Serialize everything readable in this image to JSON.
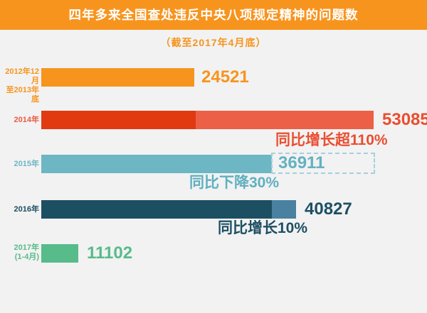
{
  "header": {
    "title": "四年多来全国查处违反中央八项规定精神的问题数",
    "bg_color": "#f7941e",
    "text_color": "#ffffff"
  },
  "subtitle": {
    "text": "（截至2017年4月底）",
    "color": "#f7941e"
  },
  "chart_data": {
    "type": "bar",
    "orientation": "horizontal",
    "title": "四年多来全国查处违反中央八项规定精神的问题数",
    "subtitle": "（截至2017年4月底）",
    "categories": [
      "2012年12月至2013年底",
      "2014年",
      "2015年",
      "2016年",
      "2017年(1-4月)"
    ],
    "values": [
      24521,
      53085,
      36911,
      40827,
      11102
    ],
    "annotations": [
      "",
      "同比增长超110%",
      "同比下降30%",
      "同比增长10%",
      ""
    ],
    "bar_colors": [
      "#f7941e",
      "#e13a10",
      "#6db6c3",
      "#1d4f63",
      "#57bb8a"
    ],
    "legend_position": "none",
    "grid": false,
    "layout_hints": "2014 and 2016 bars show previous-year amount as darker segment plus lighter growth extension; 2015 bar has dashed outline box up to the 2014 total showing the decline"
  },
  "rows": [
    {
      "label_line1": "2012年12月",
      "label_line2": "至2013年底",
      "value": "24521",
      "percent": "",
      "color": "#f7941e"
    },
    {
      "label_line1": "2014年",
      "label_line2": "",
      "value": "53085",
      "percent": "同比增长超110%",
      "color": "#e13a10",
      "growth_color": "#ec6047"
    },
    {
      "label_line1": "2015年",
      "label_line2": "",
      "value": "36911",
      "percent": "同比下降30%",
      "color": "#6db6c3",
      "dashed_border_color": "#a5d0da"
    },
    {
      "label_line1": "2016年",
      "label_line2": "",
      "value": "40827",
      "percent": "同比增长10%",
      "color": "#1d4f63",
      "growth_color": "#4a81a0"
    },
    {
      "label_line1": "2017年",
      "label_line2": "(1-4月)",
      "value": "11102",
      "percent": "",
      "color": "#57bb8a"
    }
  ],
  "background_color": "#f2f2f2"
}
